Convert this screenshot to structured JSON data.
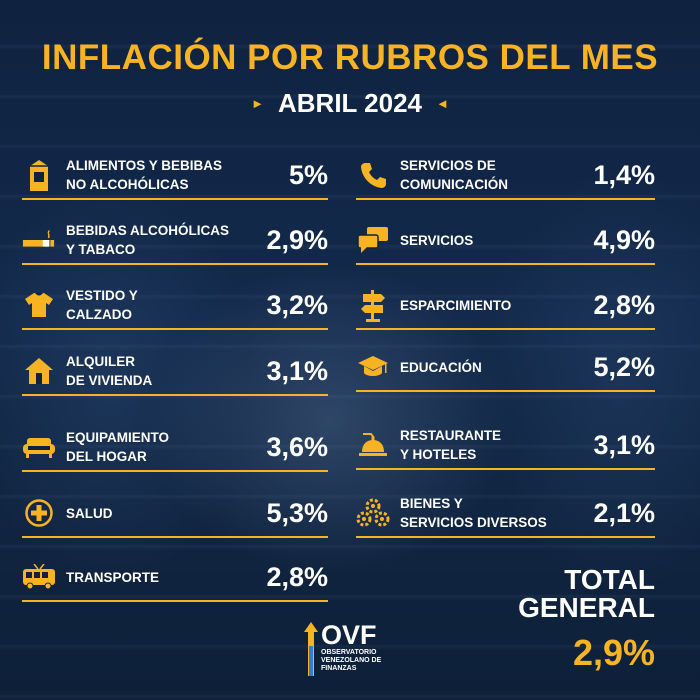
{
  "title": "INFLACIÓN POR RUBROS DEL MES",
  "subtitle": "ABRIL 2024",
  "accent_color": "#f7b322",
  "left_items": [
    {
      "label": "ALIMENTOS Y BEBIBAS\nNO ALCOHÓLICAS",
      "value": "5%",
      "icon": "food-carton-icon"
    },
    {
      "label": "BEBIDAS ALCOHÓLICAS\nY TABACO",
      "value": "2,9%",
      "icon": "cigarette-icon"
    },
    {
      "label": "VESTIDO Y\nCALZADO",
      "value": "3,2%",
      "icon": "tshirt-icon"
    },
    {
      "label": "ALQUILER\nDE VIVIENDA",
      "value": "3,1%",
      "icon": "house-icon"
    },
    {
      "label": "EQUIPAMIENTO\nDEL HOGAR",
      "value": "3,6%",
      "icon": "sofa-icon"
    },
    {
      "label": "SALUD",
      "value": "5,3%",
      "icon": "health-cross-icon"
    },
    {
      "label": "TRANSPORTE",
      "value": "2,8%",
      "icon": "bus-icon"
    }
  ],
  "right_items": [
    {
      "label": "SERVICIOS DE\nCOMUNICACIÓN",
      "value": "1,4%",
      "icon": "phone-icon"
    },
    {
      "label": "SERVICIOS",
      "value": "4,9%",
      "icon": "chat-bubbles-icon"
    },
    {
      "label": "ESPARCIMIENTO",
      "value": "2,8%",
      "icon": "signpost-icon"
    },
    {
      "label": "EDUCACIÓN",
      "value": "5,2%",
      "icon": "graduation-cap-icon"
    },
    {
      "label": "RESTAURANTE\nY HOTELES",
      "value": "3,1%",
      "icon": "service-bell-icon"
    },
    {
      "label": "BIENES Y\nSERVICIOS DIVERSOS",
      "value": "2,1%",
      "icon": "gears-icon"
    }
  ],
  "total": {
    "label": "TOTAL\nGENERAL",
    "value": "2,9%"
  },
  "logo": {
    "mark": "OVF",
    "name": "OBSERVATORIO\nVENEZOLANO DE\nFINANZAS"
  }
}
